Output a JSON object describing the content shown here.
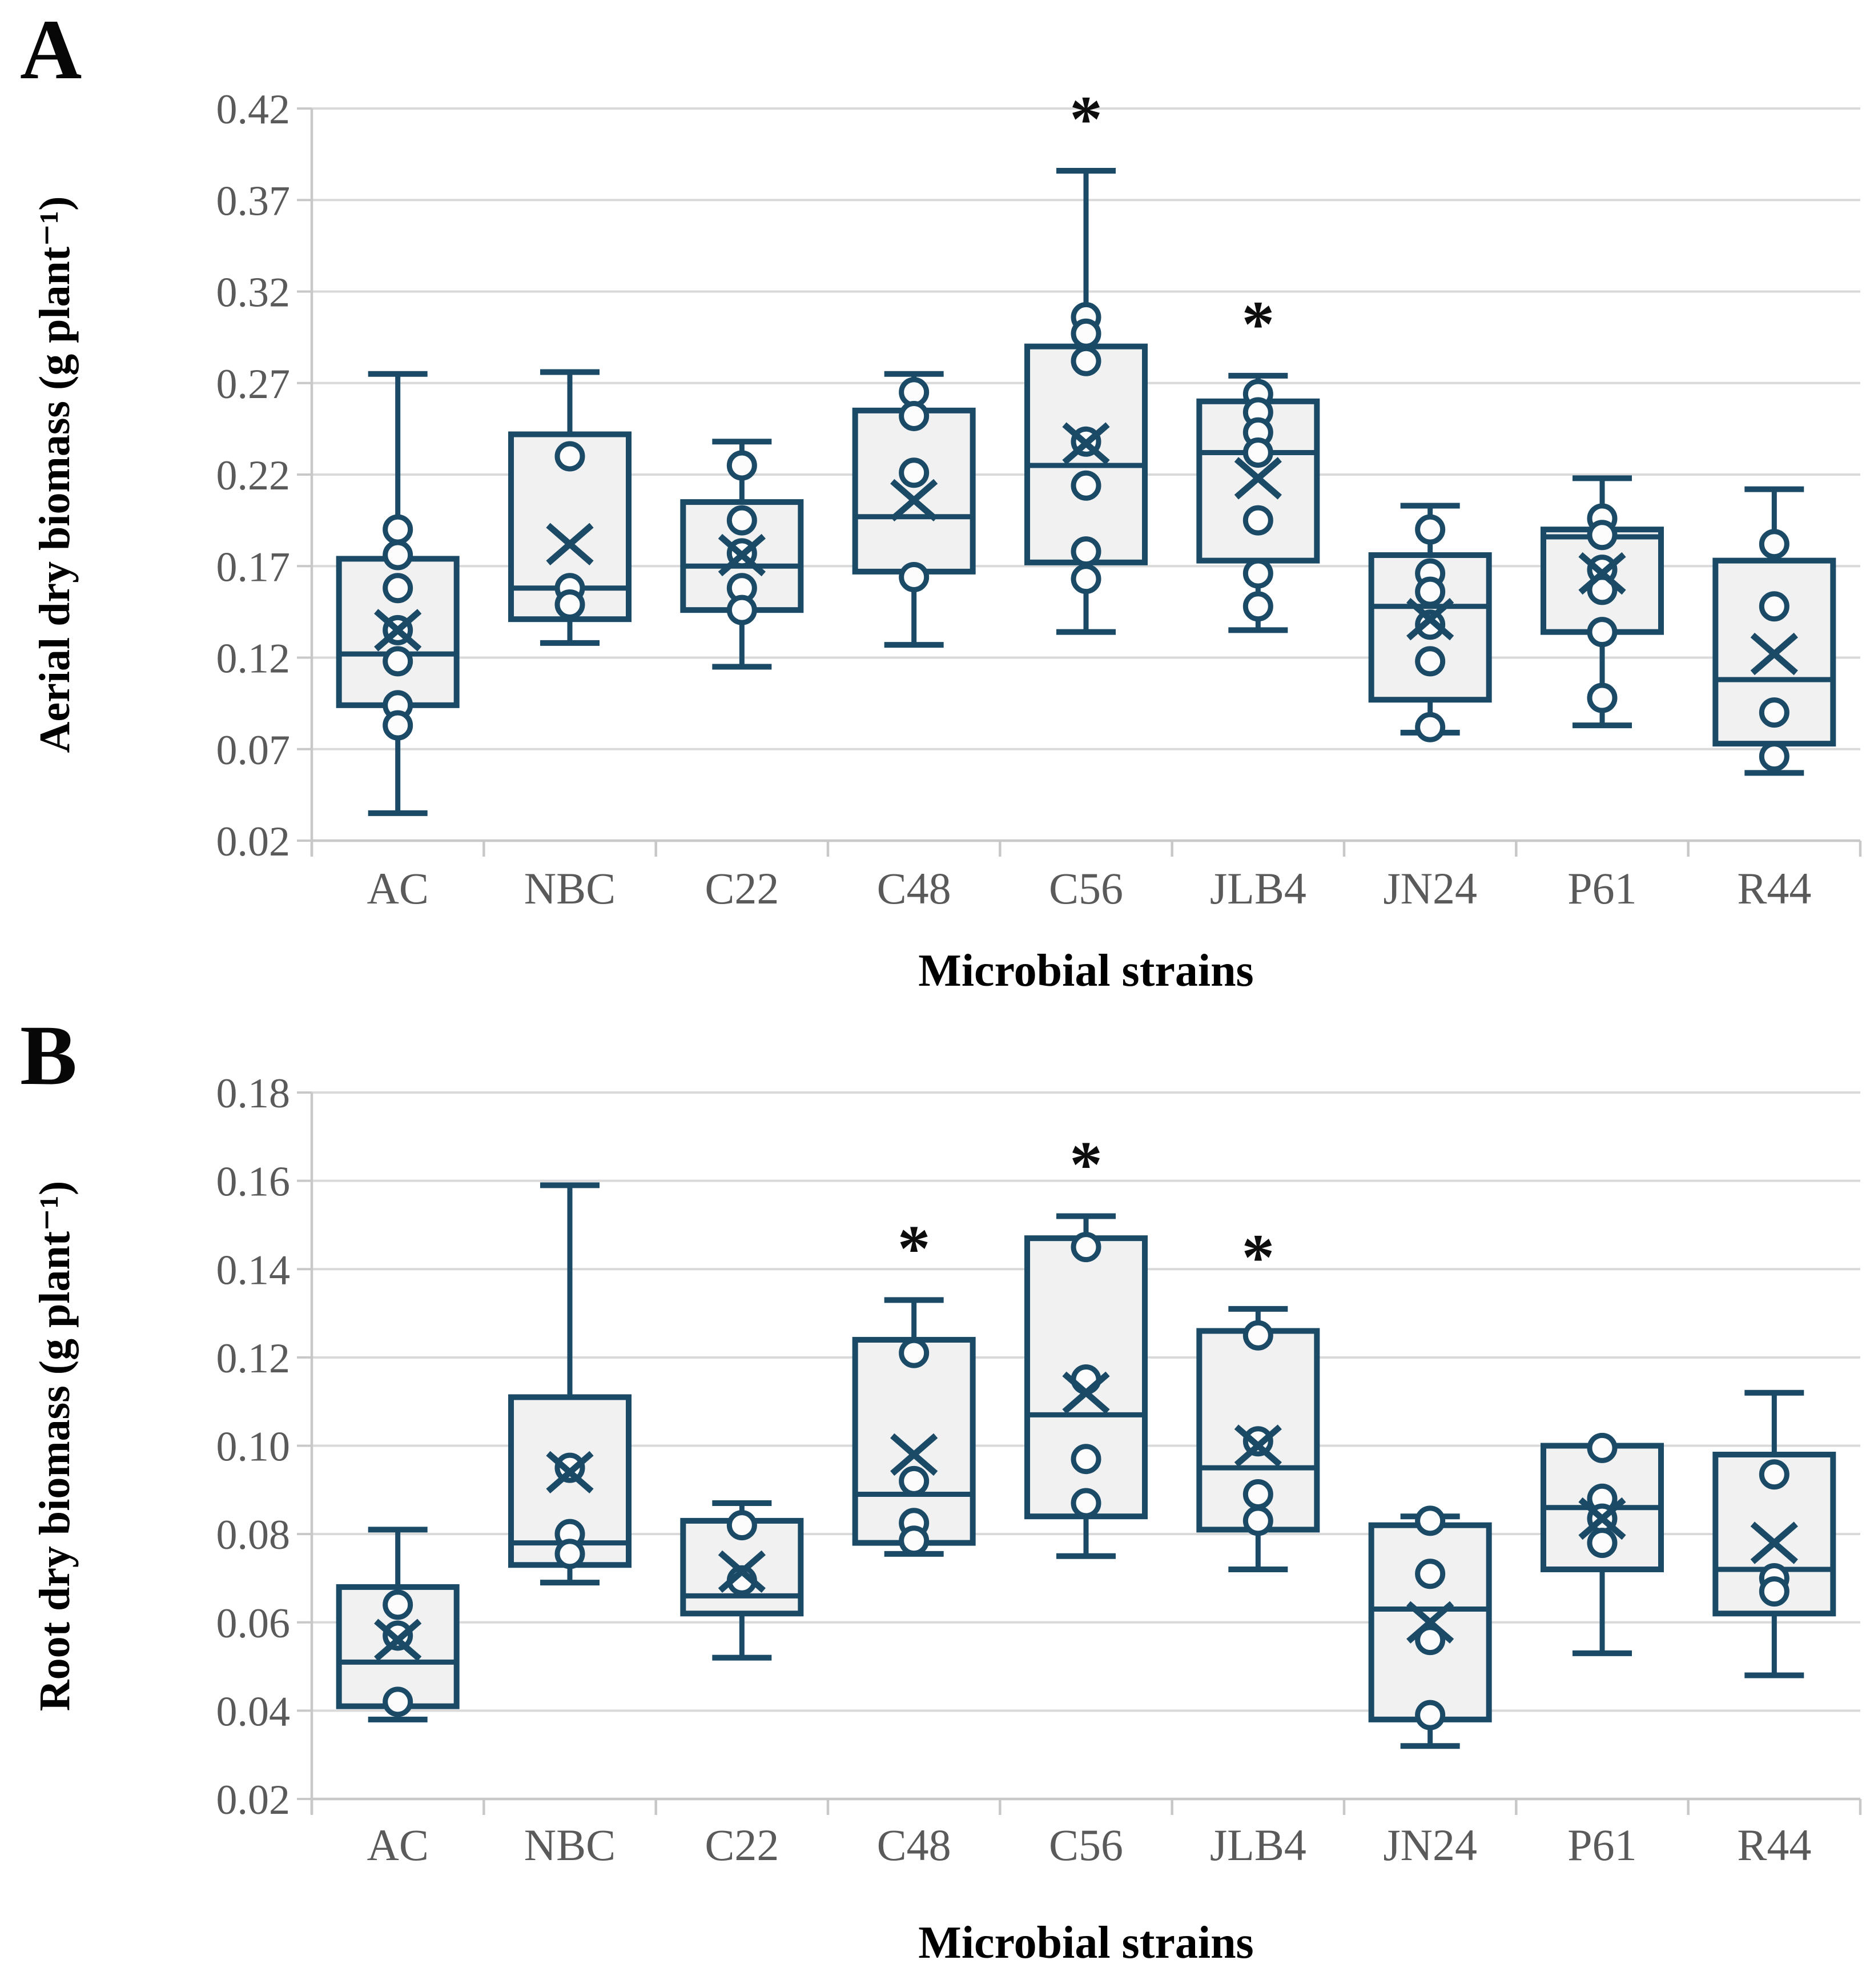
{
  "colors": {
    "line": "#1b4a66",
    "box_fill": "#f1f1f1",
    "point_fill": "#fcfcfc",
    "grid": "#d9d9d9",
    "axis": "#c8c8c8",
    "tick_label": "#5a5a5a",
    "star": "#0d0d0d"
  },
  "panels": [
    {
      "letter": "A",
      "y_title": "Aerial dry biomass (g plant⁻¹)",
      "x_title": "Microbial strains"
    },
    {
      "letter": "B",
      "y_title": "Root dry biomass (g plant⁻¹)",
      "x_title": "Microbial strains"
    }
  ],
  "chart_data": [
    {
      "type": "box",
      "panel": "A",
      "ylabel": "Aerial dry biomass (g plant⁻¹)",
      "xlabel": "Microbial strains",
      "ylim": [
        0.02,
        0.42
      ],
      "ytick_step": 0.05,
      "grid": true,
      "legend": "none",
      "categories": [
        "AC",
        "NBC",
        "C22",
        "C48",
        "C56",
        "JLB4",
        "JN24",
        "P61",
        "R44"
      ],
      "boxes": [
        {
          "category": "AC",
          "whisker_low": 0.035,
          "q1": 0.094,
          "median": 0.122,
          "q3": 0.174,
          "whisker_high": 0.275,
          "mean": 0.135,
          "points": [
            0.19,
            0.176,
            0.158,
            0.135,
            0.118,
            0.094,
            0.083
          ],
          "significant": false
        },
        {
          "category": "NBC",
          "whisker_low": 0.128,
          "q1": 0.141,
          "median": 0.158,
          "q3": 0.242,
          "whisker_high": 0.276,
          "mean": 0.182,
          "points": [
            0.23,
            0.158,
            0.149
          ],
          "significant": false
        },
        {
          "category": "C22",
          "whisker_low": 0.115,
          "q1": 0.146,
          "median": 0.17,
          "q3": 0.205,
          "whisker_high": 0.238,
          "mean": 0.176,
          "points": [
            0.225,
            0.195,
            0.177,
            0.158,
            0.146
          ],
          "significant": false
        },
        {
          "category": "C48",
          "whisker_low": 0.127,
          "q1": 0.167,
          "median": 0.197,
          "q3": 0.255,
          "whisker_high": 0.275,
          "mean": 0.206,
          "points": [
            0.265,
            0.252,
            0.221,
            0.164
          ],
          "significant": false
        },
        {
          "category": "C56",
          "whisker_low": 0.134,
          "q1": 0.172,
          "median": 0.225,
          "q3": 0.29,
          "whisker_high": 0.386,
          "mean": 0.237,
          "points": [
            0.306,
            0.297,
            0.282,
            0.238,
            0.214,
            0.178,
            0.163
          ],
          "significant": true
        },
        {
          "category": "JLB4",
          "whisker_low": 0.135,
          "q1": 0.173,
          "median": 0.232,
          "q3": 0.26,
          "whisker_high": 0.274,
          "mean": 0.218,
          "points": [
            0.264,
            0.254,
            0.243,
            0.232,
            0.195,
            0.166,
            0.148
          ],
          "significant": true
        },
        {
          "category": "JN24",
          "whisker_low": 0.079,
          "q1": 0.097,
          "median": 0.148,
          "q3": 0.176,
          "whisker_high": 0.203,
          "mean": 0.141,
          "points": [
            0.19,
            0.166,
            0.156,
            0.138,
            0.118,
            0.082
          ],
          "significant": false
        },
        {
          "category": "P61",
          "whisker_low": 0.083,
          "q1": 0.134,
          "median": 0.186,
          "q3": 0.19,
          "whisker_high": 0.218,
          "mean": 0.166,
          "points": [
            0.196,
            0.187,
            0.168,
            0.157,
            0.134,
            0.098
          ],
          "significant": false
        },
        {
          "category": "R44",
          "whisker_low": 0.057,
          "q1": 0.073,
          "median": 0.108,
          "q3": 0.173,
          "whisker_high": 0.212,
          "mean": 0.122,
          "points": [
            0.182,
            0.148,
            0.09,
            0.066
          ],
          "significant": false
        }
      ]
    },
    {
      "type": "box",
      "panel": "B",
      "ylabel": "Root dry biomass (g plant⁻¹)",
      "xlabel": "Microbial strains",
      "ylim": [
        0.02,
        0.18
      ],
      "ytick_step": 0.02,
      "grid": true,
      "legend": "none",
      "categories": [
        "AC",
        "NBC",
        "C22",
        "C48",
        "C56",
        "JLB4",
        "JN24",
        "P61",
        "R44"
      ],
      "boxes": [
        {
          "category": "AC",
          "whisker_low": 0.038,
          "q1": 0.041,
          "median": 0.051,
          "q3": 0.068,
          "whisker_high": 0.081,
          "mean": 0.056,
          "points": [
            0.064,
            0.057,
            0.042
          ],
          "significant": false
        },
        {
          "category": "NBC",
          "whisker_low": 0.069,
          "q1": 0.073,
          "median": 0.078,
          "q3": 0.111,
          "whisker_high": 0.159,
          "mean": 0.094,
          "points": [
            0.095,
            0.08,
            0.0755
          ],
          "significant": false
        },
        {
          "category": "C22",
          "whisker_low": 0.052,
          "q1": 0.062,
          "median": 0.066,
          "q3": 0.083,
          "whisker_high": 0.087,
          "mean": 0.0715,
          "points": [
            0.082,
            0.0695
          ],
          "significant": false
        },
        {
          "category": "C48",
          "whisker_low": 0.0755,
          "q1": 0.078,
          "median": 0.089,
          "q3": 0.124,
          "whisker_high": 0.133,
          "mean": 0.098,
          "points": [
            0.121,
            0.092,
            0.0825,
            0.0785
          ],
          "significant": true
        },
        {
          "category": "C56",
          "whisker_low": 0.075,
          "q1": 0.084,
          "median": 0.107,
          "q3": 0.147,
          "whisker_high": 0.152,
          "mean": 0.112,
          "points": [
            0.145,
            0.115,
            0.097,
            0.087
          ],
          "significant": true
        },
        {
          "category": "JLB4",
          "whisker_low": 0.072,
          "q1": 0.081,
          "median": 0.095,
          "q3": 0.126,
          "whisker_high": 0.131,
          "mean": 0.1,
          "points": [
            0.125,
            0.101,
            0.089,
            0.083
          ],
          "significant": true
        },
        {
          "category": "JN24",
          "whisker_low": 0.032,
          "q1": 0.038,
          "median": 0.063,
          "q3": 0.082,
          "whisker_high": 0.084,
          "mean": 0.06,
          "points": [
            0.083,
            0.071,
            0.056,
            0.039
          ],
          "significant": false
        },
        {
          "category": "P61",
          "whisker_low": 0.053,
          "q1": 0.072,
          "median": 0.086,
          "q3": 0.1,
          "whisker_high": 0.1,
          "mean": 0.0835,
          "points": [
            0.0995,
            0.088,
            0.0835,
            0.078
          ],
          "significant": false
        },
        {
          "category": "R44",
          "whisker_low": 0.048,
          "q1": 0.062,
          "median": 0.072,
          "q3": 0.098,
          "whisker_high": 0.112,
          "mean": 0.078,
          "points": [
            0.0935,
            0.07,
            0.067
          ],
          "significant": false
        }
      ]
    }
  ]
}
